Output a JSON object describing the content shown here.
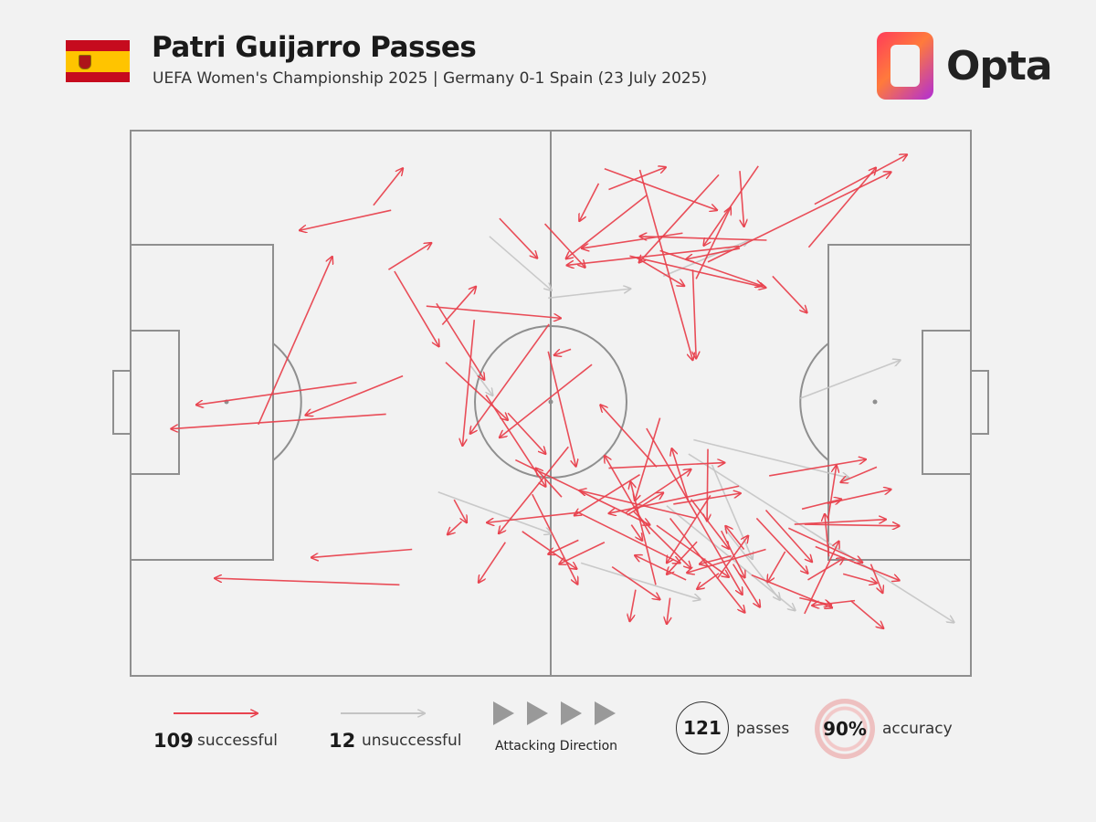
{
  "header": {
    "title": "Patri Guijarro Passes",
    "subtitle": "UEFA Women's Championship 2025 | Germany 0-1 Spain (23 July 2025)",
    "brand": "Opta",
    "flag_icon": "spain-flag-icon"
  },
  "colors": {
    "successful": "#e8434f",
    "unsuccessful": "#c4c4c4",
    "pitch_lines": "#8f8f8f",
    "background": "#f2f2f2"
  },
  "legend": {
    "successful_count": "109",
    "successful_label": "successful",
    "unsuccessful_count": "12",
    "unsuccessful_label": "unsuccessful",
    "direction_label": "Attacking Direction",
    "passes_count": "121",
    "passes_label": "passes",
    "accuracy_value": "90%",
    "accuracy_label": "accuracy"
  },
  "chart_data": {
    "type": "pass_map",
    "pitch": {
      "length": 100,
      "width": 100,
      "attacking_direction": "left-to-right"
    },
    "title": "Patri Guijarro Passes",
    "subtitle": "UEFA Women's Championship 2025 | Germany 0-1 Spain (23 July 2025)",
    "totals": {
      "passes": 121,
      "successful": 109,
      "unsuccessful": 12,
      "accuracy_pct": 90
    },
    "series": [
      {
        "name": "successful",
        "passes": [
          [
            28.9,
            13.7,
            32.4,
            6.9
          ],
          [
            31.0,
            14.6,
            20.1,
            18.3
          ],
          [
            15.2,
            53.9,
            24.0,
            23.1
          ],
          [
            26.9,
            46.2,
            7.8,
            50.3
          ],
          [
            32.4,
            45.0,
            20.8,
            52.2
          ],
          [
            30.4,
            52.0,
            4.8,
            54.7
          ],
          [
            32.0,
            83.3,
            10.0,
            82.1
          ],
          [
            30.7,
            25.5,
            35.8,
            20.6
          ],
          [
            37.1,
            35.6,
            41.1,
            28.6
          ],
          [
            31.4,
            25.8,
            36.7,
            39.6
          ],
          [
            37.5,
            42.5,
            44.9,
            53.1
          ],
          [
            43.9,
            16.1,
            48.4,
            23.4
          ],
          [
            49.3,
            17.1,
            54.1,
            25.1
          ],
          [
            55.7,
            9.7,
            53.4,
            16.6
          ],
          [
            56.4,
            7.0,
            69.8,
            14.6
          ],
          [
            60.2,
            23.3,
            65.9,
            28.5
          ],
          [
            56.9,
            10.8,
            63.7,
            6.7
          ],
          [
            67.3,
            27.2,
            71.4,
            14.1
          ],
          [
            72.5,
            7.4,
            73.0,
            17.6
          ],
          [
            74.7,
            6.5,
            68.2,
            21.1
          ],
          [
            70.0,
            8.1,
            60.5,
            24.2
          ],
          [
            59.4,
            23.0,
            75.6,
            28.8
          ],
          [
            61.4,
            11.9,
            51.8,
            23.5
          ],
          [
            60.6,
            7.2,
            66.9,
            42.1
          ],
          [
            66.9,
            25.5,
            67.3,
            41.8
          ],
          [
            80.7,
            21.4,
            88.7,
            6.8
          ],
          [
            68.7,
            24.1,
            90.5,
            7.6
          ],
          [
            63.0,
            22.0,
            75.2,
            28.5
          ],
          [
            81.4,
            13.5,
            92.4,
            4.4
          ],
          [
            76.4,
            26.7,
            80.5,
            33.4
          ],
          [
            72.5,
            21.6,
            66.1,
            23.6
          ],
          [
            72.4,
            21.2,
            51.9,
            24.7
          ],
          [
            75.7,
            20.1,
            60.6,
            19.4
          ],
          [
            65.7,
            18.8,
            53.7,
            21.6
          ],
          [
            52.4,
            40.1,
            50.4,
            41.2
          ],
          [
            35.2,
            32.2,
            51.2,
            34.4
          ],
          [
            36.4,
            31.7,
            42.1,
            45.7
          ],
          [
            40.9,
            34.7,
            39.5,
            57.8
          ],
          [
            49.8,
            35.5,
            40.4,
            55.6
          ],
          [
            42.3,
            48.5,
            49.4,
            65.3
          ],
          [
            54.9,
            42.9,
            43.9,
            56.3
          ],
          [
            44.9,
            51.8,
            49.4,
            59.3
          ],
          [
            53.5,
            70.0,
            42.4,
            71.9
          ],
          [
            59.1,
            70.5,
            63.4,
            66.4
          ],
          [
            61.8,
            74.0,
            56.4,
            59.6
          ],
          [
            56.9,
            61.9,
            70.7,
            60.9
          ],
          [
            67.3,
            71.1,
            53.4,
            66.0
          ],
          [
            62.5,
            83.3,
            59.5,
            64.4
          ],
          [
            52.1,
            58.0,
            43.8,
            73.9
          ],
          [
            45.8,
            60.4,
            61.8,
            72.3
          ],
          [
            49.7,
            40.5,
            53.0,
            61.6
          ],
          [
            47.8,
            66.7,
            53.2,
            83.2
          ],
          [
            53.1,
            69.9,
            65.4,
            79.3
          ],
          [
            61.4,
            54.6,
            72.8,
            85.1
          ],
          [
            62.6,
            61.7,
            55.9,
            50.3
          ],
          [
            63.0,
            52.7,
            60.0,
            67.9
          ],
          [
            66.7,
            67.6,
            71.2,
            76.7
          ],
          [
            64.2,
            71.1,
            73.1,
            88.4
          ],
          [
            69.8,
            82.2,
            73.5,
            74.3
          ],
          [
            71.5,
            78.0,
            67.7,
            79.5
          ],
          [
            69.0,
            66.9,
            63.8,
            79.3
          ],
          [
            75.6,
            69.6,
            81.1,
            79.1
          ],
          [
            80.2,
            88.6,
            84.3,
            75.3
          ],
          [
            78.3,
            72.9,
            87.1,
            79.2
          ],
          [
            79.0,
            72.2,
            89.9,
            71.3
          ],
          [
            80.2,
            72.2,
            91.5,
            72.5
          ],
          [
            83.0,
            71.3,
            84.0,
            61.4
          ],
          [
            82.9,
            68.4,
            90.5,
            65.8
          ],
          [
            76.0,
            63.3,
            87.5,
            60.3
          ],
          [
            72.4,
            65.2,
            56.9,
            70.2
          ],
          [
            75.6,
            76.8,
            66.2,
            81.1
          ],
          [
            73.0,
            76.8,
            70.8,
            72.5
          ],
          [
            59.9,
            69.9,
            66.7,
            80.3
          ],
          [
            62.6,
            72.4,
            71.2,
            81.9
          ],
          [
            66.4,
            68.0,
            64.4,
            58.3
          ],
          [
            73.9,
            81.5,
            83.5,
            87.5
          ],
          [
            79.6,
            85.7,
            83.4,
            87.0
          ],
          [
            85.7,
            86.2,
            89.6,
            91.3
          ],
          [
            88.8,
            61.7,
            84.5,
            64.5
          ],
          [
            64.6,
            68.5,
            72.6,
            66.5
          ],
          [
            51.3,
            67.2,
            48.2,
            61.9
          ],
          [
            46.6,
            73.5,
            53.1,
            80.4
          ],
          [
            44.6,
            75.5,
            41.4,
            82.9
          ],
          [
            33.5,
            76.8,
            21.5,
            78.3
          ],
          [
            39.4,
            71.7,
            37.7,
            74.1
          ],
          [
            38.5,
            67.7,
            40.0,
            71.9
          ],
          [
            60.6,
            63.1,
            52.8,
            70.6
          ],
          [
            79.9,
            69.4,
            84.6,
            67.6
          ],
          [
            68.7,
            58.4,
            68.6,
            71.6
          ],
          [
            70.3,
            73.4,
            73.1,
            82.0
          ],
          [
            74.5,
            71.1,
            80.6,
            81.2
          ],
          [
            80.6,
            82.4,
            84.9,
            78.4
          ],
          [
            83.1,
            78.1,
            82.6,
            70.3
          ],
          [
            81.5,
            76.3,
            91.5,
            82.5
          ],
          [
            88.1,
            79.5,
            89.5,
            84.8
          ],
          [
            86.2,
            86.2,
            81.1,
            87.1
          ],
          [
            67.4,
            75.4,
            63.8,
            81.4
          ],
          [
            66.1,
            82.4,
            60.0,
            77.9
          ],
          [
            58.9,
            70.1,
            66.7,
            62.1
          ],
          [
            59.6,
            72.3,
            60.9,
            75.2
          ],
          [
            56.4,
            75.5,
            51.0,
            79.5
          ],
          [
            53.3,
            75.1,
            49.7,
            77.7
          ],
          [
            57.3,
            80.0,
            63.0,
            86.0
          ],
          [
            70.0,
            81.2,
            67.4,
            84.1
          ],
          [
            60.1,
            84.2,
            59.4,
            90.0
          ],
          [
            64.2,
            85.7,
            63.8,
            90.5
          ],
          [
            71.7,
            79.5,
            74.9,
            87.4
          ],
          [
            77.9,
            77.2,
            75.8,
            82.8
          ],
          [
            84.8,
            81.3,
            88.8,
            83.0
          ]
        ]
      },
      {
        "name": "unsuccessful",
        "passes": [
          [
            53.6,
            79.3,
            67.8,
            86.0
          ],
          [
            36.6,
            66.3,
            50.1,
            73.9
          ],
          [
            40.5,
            43.2,
            43.1,
            48.6
          ],
          [
            63.4,
            26.7,
            73.6,
            20.1
          ],
          [
            42.7,
            19.4,
            50.1,
            29.3
          ],
          [
            49.7,
            30.7,
            59.5,
            29.0
          ],
          [
            67.0,
            56.7,
            85.5,
            63.7
          ],
          [
            66.4,
            59.3,
            98.0,
            90.2
          ],
          [
            70.7,
            73.0,
            77.3,
            86.1
          ],
          [
            63.8,
            68.8,
            79.1,
            88.0
          ],
          [
            69.2,
            61.3,
            74.0,
            78.6
          ],
          [
            79.7,
            49.1,
            91.6,
            42.1
          ]
        ]
      }
    ]
  }
}
